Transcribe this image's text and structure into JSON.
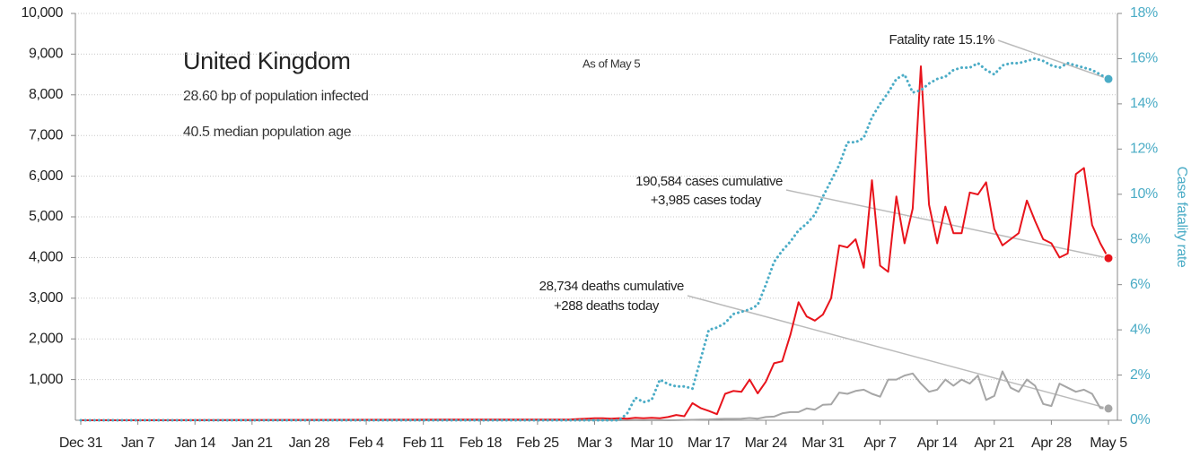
{
  "chart_data": {
    "type": "line",
    "title": "United Kingdom",
    "subtitle": [
      "28.60 bp of population infected",
      "40.5 median population age"
    ],
    "note": "As of May 5",
    "y2label": "Case fatality rate",
    "annotations": [
      "Fatality rate 15.1%",
      "190,584 cases cumulative",
      "+3,985 cases today",
      "28,734 deaths cumulative",
      "+288 deaths today"
    ],
    "x": [
      0,
      60,
      61,
      62,
      63,
      64,
      65,
      66,
      67,
      68,
      69,
      70,
      71,
      72,
      73,
      74,
      75,
      76,
      77,
      78,
      79,
      80,
      81,
      82,
      83,
      84,
      85,
      86,
      87,
      88,
      89,
      90,
      91,
      92,
      93,
      94,
      95,
      96,
      97,
      98,
      99,
      100,
      101,
      102,
      103,
      104,
      105,
      106,
      107,
      108,
      109,
      110,
      111,
      112,
      113,
      114,
      115,
      116,
      117,
      118,
      119,
      120,
      121,
      122,
      123,
      124,
      125,
      126
    ],
    "xlim": [
      0,
      126
    ],
    "xticks": [
      {
        "value": 0,
        "label": "Dec 31"
      },
      {
        "value": 7,
        "label": "Jan 7"
      },
      {
        "value": 14,
        "label": "Jan 14"
      },
      {
        "value": 21,
        "label": "Jan 21"
      },
      {
        "value": 28,
        "label": "Jan 28"
      },
      {
        "value": 35,
        "label": "Feb 4"
      },
      {
        "value": 42,
        "label": "Feb 11"
      },
      {
        "value": 49,
        "label": "Feb 18"
      },
      {
        "value": 56,
        "label": "Feb 25"
      },
      {
        "value": 63,
        "label": "Mar 3"
      },
      {
        "value": 70,
        "label": "Mar 10"
      },
      {
        "value": 77,
        "label": "Mar 17"
      },
      {
        "value": 84,
        "label": "Mar 24"
      },
      {
        "value": 91,
        "label": "Mar 31"
      },
      {
        "value": 98,
        "label": "Apr 7"
      },
      {
        "value": 105,
        "label": "Apr 14"
      },
      {
        "value": 112,
        "label": "Apr 21"
      },
      {
        "value": 119,
        "label": "Apr 28"
      },
      {
        "value": 126,
        "label": "May 5"
      }
    ],
    "ylim": [
      0,
      10000
    ],
    "yticks": [
      {
        "value": 1000,
        "label": "1,000"
      },
      {
        "value": 2000,
        "label": "2,000"
      },
      {
        "value": 3000,
        "label": "3,000"
      },
      {
        "value": 4000,
        "label": "4,000"
      },
      {
        "value": 5000,
        "label": "5,000"
      },
      {
        "value": 6000,
        "label": "6,000"
      },
      {
        "value": 7000,
        "label": "7,000"
      },
      {
        "value": 8000,
        "label": "8,000"
      },
      {
        "value": 9000,
        "label": "9,000"
      },
      {
        "value": 10000,
        "label": "10,000"
      }
    ],
    "y2lim": [
      0,
      18
    ],
    "y2ticks": [
      {
        "value": 0,
        "label": "0%"
      },
      {
        "value": 2,
        "label": "2%"
      },
      {
        "value": 4,
        "label": "4%"
      },
      {
        "value": 6,
        "label": "6%"
      },
      {
        "value": 8,
        "label": "8%"
      },
      {
        "value": 10,
        "label": "10%"
      },
      {
        "value": 12,
        "label": "12%"
      },
      {
        "value": 14,
        "label": "14%"
      },
      {
        "value": 16,
        "label": "16%"
      },
      {
        "value": 18,
        "label": "18%"
      }
    ],
    "grid": true,
    "series": [
      {
        "color": "#a6a6a6",
        "style": "solid",
        "values": [
          0,
          0,
          0,
          0,
          1,
          0,
          1,
          2,
          1,
          2,
          1,
          2,
          3,
          1,
          2,
          8,
          10,
          15,
          20,
          30,
          35,
          35,
          40,
          55,
          40,
          80,
          90,
          170,
          200,
          200,
          290,
          260,
          380,
          390,
          680,
          650,
          720,
          750,
          650,
          580,
          1000,
          1000,
          1100,
          1150,
          900,
          700,
          750,
          1000,
          850,
          1000,
          900,
          1100,
          500,
          600,
          1200,
          800,
          700,
          1000,
          850,
          400,
          350,
          900,
          800,
          700,
          750,
          650,
          300,
          288
        ]
      },
      {
        "color": "#e8141c",
        "style": "solid",
        "values": [
          0,
          20,
          30,
          40,
          50,
          50,
          40,
          50,
          40,
          60,
          50,
          60,
          50,
          80,
          130,
          100,
          420,
          300,
          230,
          150,
          650,
          720,
          700,
          1000,
          660,
          950,
          1400,
          1450,
          2100,
          2900,
          2550,
          2450,
          2600,
          3000,
          4300,
          4250,
          4450,
          3750,
          5900,
          3800,
          3650,
          5500,
          4350,
          5200,
          8700,
          5300,
          4350,
          5250,
          4600,
          4600,
          5600,
          5550,
          5850,
          4700,
          4300,
          4450,
          4600,
          5400,
          4900,
          4450,
          4350,
          4000,
          4100,
          6050,
          6200,
          4800,
          4350,
          3985
        ]
      },
      {
        "color": "#4bacc6",
        "style": "dotted",
        "axis": "y2",
        "values": [
          0,
          0,
          0,
          0,
          0,
          0,
          0,
          0,
          0.3,
          1.0,
          0.8,
          0.9,
          1.8,
          1.6,
          1.5,
          1.5,
          1.4,
          2.7,
          4,
          4.1,
          4.3,
          4.7,
          4.8,
          4.9,
          5.1,
          6,
          7,
          7.5,
          7.9,
          8.4,
          8.7,
          9.1,
          9.9,
          10.6,
          11.3,
          12.3,
          12.3,
          12.5,
          13.4,
          14,
          14.5,
          15.1,
          15.3,
          14.5,
          14.6,
          14.9,
          15.1,
          15.2,
          15.5,
          15.6,
          15.6,
          15.8,
          15.5,
          15.3,
          15.7,
          15.8,
          15.8,
          15.9,
          16,
          15.9,
          15.7,
          15.6,
          15.8,
          15.7,
          15.6,
          15.5,
          15.3,
          15.1
        ]
      }
    ]
  }
}
